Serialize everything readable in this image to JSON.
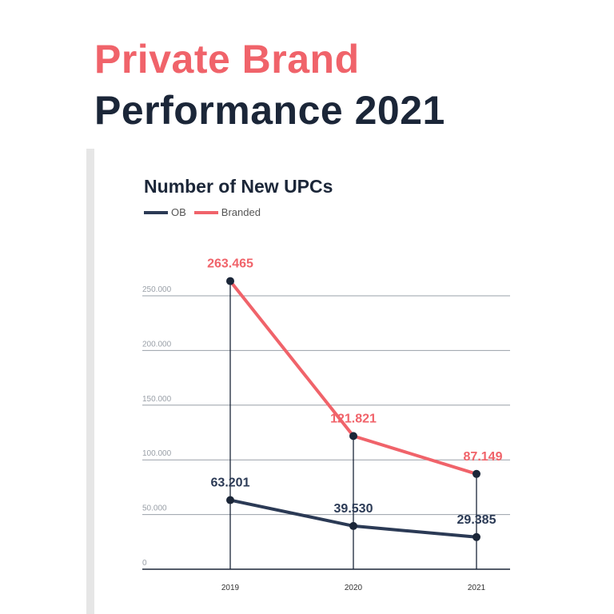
{
  "header": {
    "title_line1": "Private Brand",
    "title_line2": "Performance 2021"
  },
  "colors": {
    "ob": "#2b3a55",
    "branded": "#f0636a",
    "title_accent": "#f0636a",
    "title_dark": "#1b2638",
    "grid": "#9aa0a8"
  },
  "chart_data": {
    "type": "line",
    "title": "Number of New UPCs",
    "xlabel": "",
    "ylabel": "",
    "categories": [
      "2019",
      "2020",
      "2021"
    ],
    "ylim": [
      0,
      250000
    ],
    "yticks": [
      0,
      50000,
      100000,
      150000,
      200000,
      250000
    ],
    "ytick_labels": [
      "0",
      "50.000",
      "100.000",
      "150.000",
      "200.000",
      "250.000"
    ],
    "grid": true,
    "legend_position": "top-left",
    "series": [
      {
        "name": "OB",
        "color": "#2b3a55",
        "values": [
          63201,
          39530,
          29385
        ],
        "labels": [
          "63.201",
          "39.530",
          "29.385"
        ]
      },
      {
        "name": "Branded",
        "color": "#f0636a",
        "values": [
          263465,
          121821,
          87149
        ],
        "labels": [
          "263.465",
          "121.821",
          "87.149"
        ]
      }
    ]
  }
}
